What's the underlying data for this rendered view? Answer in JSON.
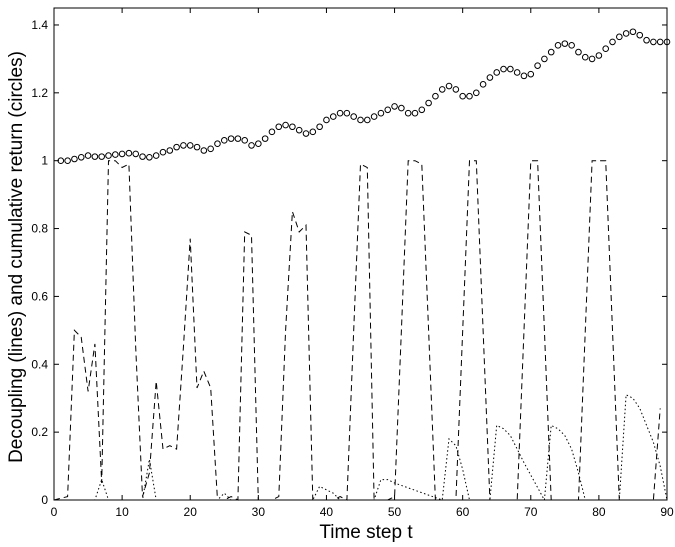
{
  "chart_data": {
    "type": "line",
    "xlabel": "Time step t",
    "ylabel": "Decoupling (lines)  and cumulative return (circles)",
    "xlim": [
      0,
      90
    ],
    "ylim": [
      0,
      1.45
    ],
    "xticks": [
      "0",
      "10",
      "20",
      "30",
      "40",
      "50",
      "60",
      "70",
      "80",
      "90"
    ],
    "yticks": [
      "0",
      "0.2",
      "0.4",
      "0.6",
      "0.8",
      "1",
      "1.2",
      "1.4"
    ],
    "grid": false,
    "series": [
      {
        "style": "circles",
        "x": [
          1,
          2,
          3,
          4,
          5,
          6,
          7,
          8,
          9,
          10,
          11,
          12,
          13,
          14,
          15,
          16,
          17,
          18,
          19,
          20,
          21,
          22,
          23,
          24,
          25,
          26,
          27,
          28,
          29,
          30,
          31,
          32,
          33,
          34,
          35,
          36,
          37,
          38,
          39,
          40,
          41,
          42,
          43,
          44,
          45,
          46,
          47,
          48,
          49,
          50,
          51,
          52,
          53,
          54,
          55,
          56,
          57,
          58,
          59,
          60,
          61,
          62,
          63,
          64,
          65,
          66,
          67,
          68,
          69,
          70,
          71,
          72,
          73,
          74,
          75,
          76,
          77,
          78,
          79,
          80,
          81,
          82,
          83,
          84,
          85,
          86,
          87,
          88,
          89,
          90
        ],
        "y": [
          1.0,
          1.0,
          1.005,
          1.01,
          1.015,
          1.012,
          1.012,
          1.015,
          1.018,
          1.02,
          1.022,
          1.02,
          1.012,
          1.01,
          1.015,
          1.025,
          1.03,
          1.04,
          1.045,
          1.045,
          1.04,
          1.03,
          1.035,
          1.05,
          1.06,
          1.065,
          1.065,
          1.06,
          1.045,
          1.05,
          1.065,
          1.085,
          1.1,
          1.105,
          1.1,
          1.09,
          1.08,
          1.085,
          1.1,
          1.12,
          1.13,
          1.14,
          1.14,
          1.13,
          1.12,
          1.12,
          1.13,
          1.14,
          1.15,
          1.16,
          1.155,
          1.14,
          1.14,
          1.15,
          1.17,
          1.19,
          1.21,
          1.22,
          1.21,
          1.19,
          1.19,
          1.2,
          1.225,
          1.245,
          1.26,
          1.27,
          1.27,
          1.26,
          1.25,
          1.255,
          1.28,
          1.3,
          1.32,
          1.34,
          1.345,
          1.34,
          1.32,
          1.305,
          1.3,
          1.31,
          1.33,
          1.35,
          1.365,
          1.375,
          1.38,
          1.37,
          1.355,
          1.35,
          1.35,
          1.35
        ]
      },
      {
        "style": "dashed",
        "x": [
          0,
          1,
          2,
          3,
          4,
          5,
          6,
          7,
          8,
          9,
          10,
          11,
          12,
          13,
          14,
          15,
          16,
          17,
          18,
          19,
          20,
          21,
          22,
          23,
          24,
          25,
          26,
          27,
          28,
          29,
          30,
          31,
          32,
          33,
          34,
          35,
          36,
          37,
          38,
          39,
          40,
          41,
          42,
          43,
          44,
          45,
          46,
          47,
          48,
          49,
          50,
          51,
          52,
          53,
          54,
          55,
          56,
          57,
          58,
          59,
          60,
          61,
          62,
          63,
          64,
          65,
          66,
          67,
          68,
          69,
          70,
          71,
          72,
          73,
          74,
          75,
          76,
          77,
          78,
          79,
          80,
          81,
          82,
          83,
          84,
          85,
          86,
          87,
          88,
          89
        ],
        "y": [
          0,
          0.005,
          0.01,
          0.5,
          0.48,
          0.32,
          0.46,
          0.05,
          1.0,
          1.0,
          0.98,
          0.99,
          0.45,
          0.01,
          0.08,
          0.35,
          0.15,
          0.16,
          0.15,
          0.45,
          0.77,
          0.33,
          0.38,
          0.33,
          0.0,
          0.0,
          0.01,
          0.0,
          0.79,
          0.78,
          0.0,
          0.0,
          0.0,
          0.01,
          0.5,
          0.85,
          0.79,
          0.81,
          0.0,
          0.0,
          0.0,
          0.0,
          0.01,
          0.0,
          0.5,
          0.99,
          0.98,
          0.0,
          0.0,
          0.0,
          0.01,
          0.5,
          1.0,
          1.0,
          0.99,
          0.5,
          0.0,
          0.0,
          0.0,
          0.0,
          0.5,
          1.0,
          1.0,
          0.5,
          0.0,
          0.0,
          0.0,
          0.0,
          0.0,
          0.5,
          1.0,
          1.0,
          0.5,
          0.0,
          0.0,
          0.0,
          0.0,
          0.0,
          0.5,
          1.0,
          1.0,
          1.0,
          0.5,
          0.0,
          0.0,
          0.0,
          0.0,
          0.0,
          0.0,
          0.27
        ]
      },
      {
        "style": "dotted",
        "x": [
          0,
          6,
          7,
          8,
          13,
          14,
          15,
          16,
          24,
          25,
          26,
          27,
          38,
          39,
          40,
          41,
          42,
          47,
          48,
          49,
          50,
          57,
          58,
          59,
          60,
          61,
          64,
          65,
          66,
          67,
          68,
          69,
          72,
          73,
          74,
          75,
          76,
          77,
          78,
          83,
          84,
          85,
          86,
          87,
          88,
          89,
          90
        ],
        "y": [
          0,
          0,
          0.06,
          0,
          0,
          0.12,
          0,
          0,
          0,
          0.02,
          0,
          0,
          0,
          0.04,
          0.03,
          0.02,
          0,
          0,
          0.06,
          0.06,
          0.05,
          0,
          0.18,
          0.16,
          0.09,
          0,
          0,
          0.22,
          0.21,
          0.19,
          0.15,
          0.11,
          0,
          0.22,
          0.21,
          0.19,
          0.15,
          0.08,
          0,
          0,
          0.31,
          0.3,
          0.27,
          0.22,
          0.17,
          0.1,
          0
        ]
      }
    ]
  }
}
